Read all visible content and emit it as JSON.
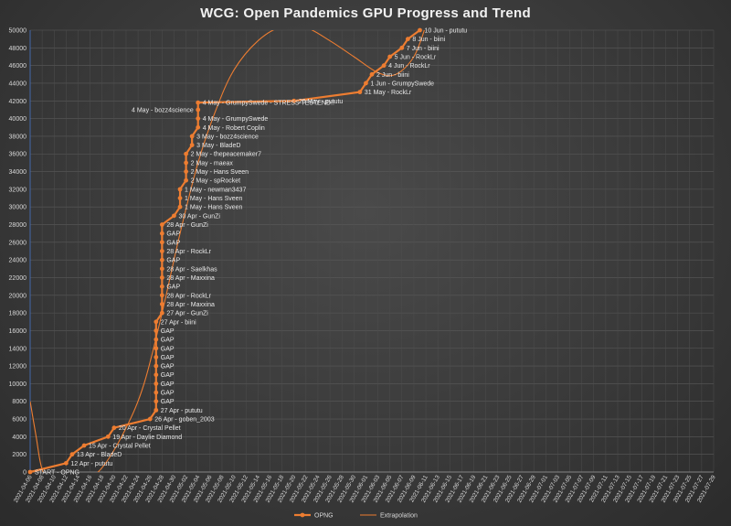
{
  "chart_data": {
    "type": "line",
    "title": "WCG: Open Pandemics  GPU Progress  and Trend",
    "xlabel": "",
    "ylabel": "",
    "ylim": [
      0,
      50000
    ],
    "yticks": [
      0,
      2000,
      4000,
      6000,
      8000,
      10000,
      12000,
      14000,
      16000,
      18000,
      20000,
      22000,
      24000,
      26000,
      28000,
      30000,
      32000,
      34000,
      36000,
      38000,
      40000,
      42000,
      44000,
      46000,
      48000,
      50000
    ],
    "xlim": [
      "2021-04-06",
      "2021-07-29"
    ],
    "xticks": [
      "2021-04-06",
      "2021-04-08",
      "2021-04-10",
      "2021-04-12",
      "2021-04-14",
      "2021-04-16",
      "2021-04-18",
      "2021-04-20",
      "2021-04-22",
      "2021-04-24",
      "2021-04-26",
      "2021-04-28",
      "2021-04-30",
      "2021-05-02",
      "2021-05-04",
      "2021-05-06",
      "2021-05-08",
      "2021-05-10",
      "2021-05-12",
      "2021-05-14",
      "2021-05-16",
      "2021-05-18",
      "2021-05-20",
      "2021-05-22",
      "2021-05-24",
      "2021-05-26",
      "2021-05-28",
      "2021-05-30",
      "2021-06-01",
      "2021-06-03",
      "2021-06-05",
      "2021-06-07",
      "2021-06-09",
      "2021-06-11",
      "2021-06-13",
      "2021-06-15",
      "2021-06-17",
      "2021-06-19",
      "2021-06-21",
      "2021-06-23",
      "2021-06-25",
      "2021-06-27",
      "2021-06-29",
      "2021-07-01",
      "2021-07-03",
      "2021-07-05",
      "2021-07-07",
      "2021-07-09",
      "2021-07-11",
      "2021-07-13",
      "2021-07-15",
      "2021-07-17",
      "2021-07-19",
      "2021-07-21",
      "2021-07-23",
      "2021-07-25",
      "2021-07-27",
      "2021-07-29"
    ],
    "grid": true,
    "legend": "bottom",
    "series": [
      {
        "name": "OPNG",
        "color": "#ed7d31",
        "markers": true,
        "points": [
          {
            "x": "2021-04-06",
            "y": 0,
            "label": "START - OPNG"
          },
          {
            "x": "2021-04-12",
            "y": 1000,
            "label": "12 Apr -  pututu"
          },
          {
            "x": "2021-04-13",
            "y": 2000,
            "label": "13 Apr - BladeD"
          },
          {
            "x": "2021-04-15",
            "y": 3000,
            "label": "15 Apr - Crystal Pellet"
          },
          {
            "x": "2021-04-19",
            "y": 4000,
            "label": "19 Apr - Daylie Diamond"
          },
          {
            "x": "2021-04-20",
            "y": 5000,
            "label": "20 Apr - Crystal Pellet"
          },
          {
            "x": "2021-04-26",
            "y": 6000,
            "label": "26 Apr - goben_2003"
          },
          {
            "x": "2021-04-27",
            "y": 7000,
            "label": "27 Apr - pututu"
          },
          {
            "x": "2021-04-27",
            "y": 8000,
            "label": "GAP"
          },
          {
            "x": "2021-04-27",
            "y": 9000,
            "label": "GAP"
          },
          {
            "x": "2021-04-27",
            "y": 10000,
            "label": "GAP"
          },
          {
            "x": "2021-04-27",
            "y": 11000,
            "label": "GAP"
          },
          {
            "x": "2021-04-27",
            "y": 12000,
            "label": "GAP"
          },
          {
            "x": "2021-04-27",
            "y": 13000,
            "label": "GAP"
          },
          {
            "x": "2021-04-27",
            "y": 14000,
            "label": "GAP"
          },
          {
            "x": "2021-04-27",
            "y": 15000,
            "label": "GAP"
          },
          {
            "x": "2021-04-27",
            "y": 16000,
            "label": "GAP"
          },
          {
            "x": "2021-04-27",
            "y": 17000,
            "label": "27 Apr - biini"
          },
          {
            "x": "2021-04-28",
            "y": 18000,
            "label": "27 Apr - GunZi"
          },
          {
            "x": "2021-04-28",
            "y": 19000,
            "label": "28 Apr - Maxxina"
          },
          {
            "x": "2021-04-28",
            "y": 20000,
            "label": "28 Apr - RockLr"
          },
          {
            "x": "2021-04-28",
            "y": 21000,
            "label": "GAP"
          },
          {
            "x": "2021-04-28",
            "y": 22000,
            "label": "28 Apr - Maxxina"
          },
          {
            "x": "2021-04-28",
            "y": 23000,
            "label": "28 Apr - Saelkhas"
          },
          {
            "x": "2021-04-28",
            "y": 24000,
            "label": "GAP"
          },
          {
            "x": "2021-04-28",
            "y": 25000,
            "label": "28 Apr - RockLr"
          },
          {
            "x": "2021-04-28",
            "y": 26000,
            "label": "GAP"
          },
          {
            "x": "2021-04-28",
            "y": 27000,
            "label": "GAP"
          },
          {
            "x": "2021-04-28",
            "y": 28000,
            "label": "28 Apr - GunZi"
          },
          {
            "x": "2021-04-30",
            "y": 29000,
            "label": "30 Apr - GunZi"
          },
          {
            "x": "2021-05-01",
            "y": 30000,
            "label": "1 May - Hans Sveen"
          },
          {
            "x": "2021-05-01",
            "y": 31000,
            "label": "1 May - Hans Sveen"
          },
          {
            "x": "2021-05-01",
            "y": 32000,
            "label": "1 May - newman3437"
          },
          {
            "x": "2021-05-02",
            "y": 33000,
            "label": "2 May - spRocket"
          },
          {
            "x": "2021-05-02",
            "y": 34000,
            "label": "2 May - Hans Sveen"
          },
          {
            "x": "2021-05-02",
            "y": 35000,
            "label": "2 May - maeax"
          },
          {
            "x": "2021-05-02",
            "y": 36000,
            "label": "2 May - thepeacemaker7"
          },
          {
            "x": "2021-05-03",
            "y": 37000,
            "label": "3 May - BladeD"
          },
          {
            "x": "2021-05-03",
            "y": 38000,
            "label": "3 May - bozz4science"
          },
          {
            "x": "2021-05-04",
            "y": 39000,
            "label": "4 May - Robert Coplin"
          },
          {
            "x": "2021-05-04",
            "y": 40000,
            "label": "4 May - GrumpySwede"
          },
          {
            "x": "2021-05-04",
            "y": 41000,
            "label": "4 May - bozz4science"
          },
          {
            "x": "2021-05-04",
            "y": 41800,
            "label": "4 May - GrumpySwede - STRESS TESTEND!!"
          },
          {
            "x": "2021-05-20",
            "y": 42000,
            "label": "20 May - pututu"
          },
          {
            "x": "2021-05-31",
            "y": 43000,
            "label": "31 May - RockLr"
          },
          {
            "x": "2021-06-01",
            "y": 44000,
            "label": "1 Jun - GrumpySwede"
          },
          {
            "x": "2021-06-02",
            "y": 45000,
            "label": "2 Jun - biini"
          },
          {
            "x": "2021-06-04",
            "y": 46000,
            "label": "4 Jun - RockLr"
          },
          {
            "x": "2021-06-05",
            "y": 47000,
            "label": "5 Jun - RockLr"
          },
          {
            "x": "2021-06-07",
            "y": 48000,
            "label": "7 Jun - biini"
          },
          {
            "x": "2021-06-08",
            "y": 49000,
            "label": "8 Jun - biini"
          },
          {
            "x": "2021-06-10",
            "y": 50000,
            "label": "10 Jun - pututu"
          }
        ]
      },
      {
        "name": "Extrapolation",
        "color": "#ed7d31",
        "markers": false,
        "points": [
          {
            "x": "2021-04-06",
            "y": 8000
          },
          {
            "x": "2021-04-07",
            "y": 4000
          },
          {
            "x": "2021-04-08",
            "y": 300
          },
          {
            "x": "2021-04-10",
            "y": -2000
          },
          {
            "x": "2021-04-14",
            "y": -1500
          },
          {
            "x": "2021-04-18",
            "y": 500
          },
          {
            "x": "2021-04-22",
            "y": 5000
          },
          {
            "x": "2021-04-25",
            "y": 10000
          },
          {
            "x": "2021-04-28",
            "y": 18000
          },
          {
            "x": "2021-05-01",
            "y": 27000
          },
          {
            "x": "2021-05-04",
            "y": 35000
          },
          {
            "x": "2021-05-07",
            "y": 41000
          },
          {
            "x": "2021-05-10",
            "y": 45500
          },
          {
            "x": "2021-05-14",
            "y": 48800
          },
          {
            "x": "2021-05-18",
            "y": 50400
          },
          {
            "x": "2021-05-22",
            "y": 50300
          },
          {
            "x": "2021-05-26",
            "y": 48800
          },
          {
            "x": "2021-05-30",
            "y": 47000
          },
          {
            "x": "2021-06-03",
            "y": 45200
          },
          {
            "x": "2021-06-06",
            "y": 45000
          },
          {
            "x": "2021-06-09",
            "y": 47000
          },
          {
            "x": "2021-06-11",
            "y": 50500
          }
        ]
      }
    ]
  }
}
